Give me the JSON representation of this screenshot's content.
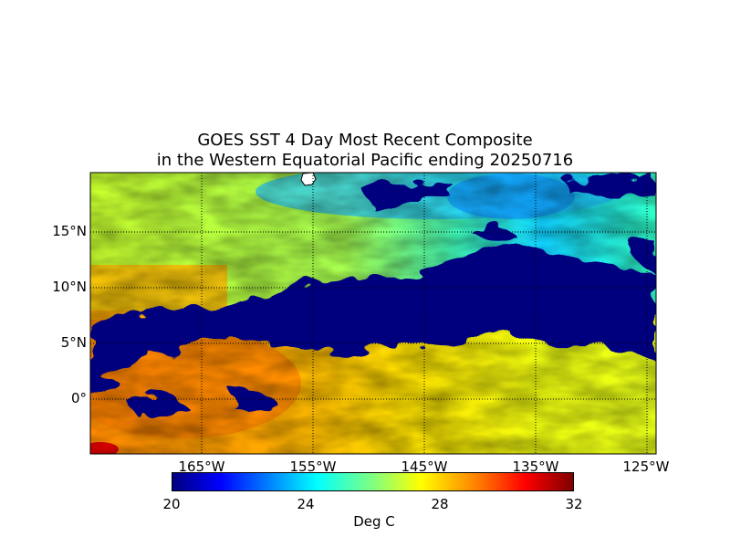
{
  "title": {
    "line1": "GOES SST 4 Day Most Recent Composite",
    "line2": "in the Western Equatorial Pacific ending 20250716"
  },
  "map": {
    "lat_ticks": [
      "15°N",
      "10°N",
      "5°N",
      "0°"
    ],
    "lon_ticks": [
      "165°W",
      "155°W",
      "145°W",
      "135°W",
      "125°W"
    ],
    "land_color": "#ffffff",
    "missing_color": "#00007f",
    "grid": true
  },
  "colorbar": {
    "ticks": [
      "20",
      "24",
      "28",
      "32"
    ],
    "label": "Deg C",
    "range": [
      20,
      32
    ],
    "colormap": "jet"
  }
}
